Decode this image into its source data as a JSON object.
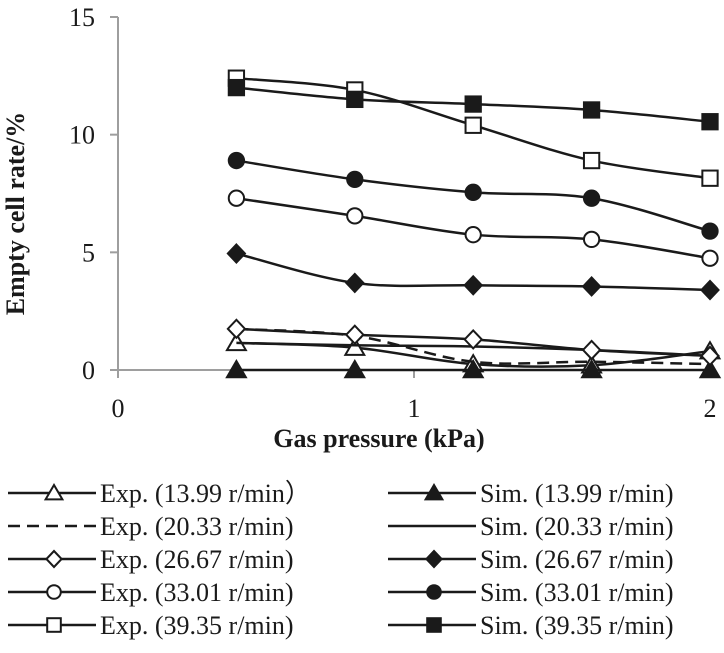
{
  "chart_data": {
    "type": "line",
    "title": "",
    "xlabel": "Gas pressure (kPa)",
    "ylabel": "Empty cell rate/%",
    "xlim": [
      0,
      2
    ],
    "ylim": [
      0,
      15
    ],
    "xticks": [
      0,
      1,
      2
    ],
    "yticks": [
      0,
      5,
      10,
      15
    ],
    "grid": false,
    "legend_position": "bottom",
    "series": [
      {
        "name": "Exp. (13.99 r/min）",
        "line": "solid",
        "marker": "open-triangle",
        "x": [
          0.4,
          0.8,
          1.2,
          1.6,
          2.0
        ],
        "y": [
          1.15,
          0.95,
          0.25,
          0.2,
          0.8
        ]
      },
      {
        "name": "Sim. (13.99 r/min)",
        "line": "solid",
        "marker": "filled-triangle",
        "x": [
          0.4,
          0.8,
          1.2,
          1.6,
          2.0
        ],
        "y": [
          0.0,
          0.0,
          0.0,
          0.0,
          0.0
        ]
      },
      {
        "name": "Exp. (20.33 r/min)",
        "line": "dashed",
        "marker": "none",
        "x": [
          0.4,
          0.8,
          1.2,
          1.6,
          2.0
        ],
        "y": [
          1.75,
          1.45,
          0.35,
          0.35,
          0.25
        ]
      },
      {
        "name": "Sim. (20.33 r/min)",
        "line": "solid",
        "marker": "none",
        "x": [
          0.4,
          0.8,
          1.2,
          1.6,
          2.0
        ],
        "y": [
          1.15,
          1.05,
          1.0,
          0.85,
          0.6
        ]
      },
      {
        "name": "Exp. (26.67 r/min)",
        "line": "solid",
        "marker": "open-diamond",
        "x": [
          0.4,
          0.8,
          1.2,
          1.6,
          2.0
        ],
        "y": [
          1.75,
          1.5,
          1.3,
          0.85,
          0.6
        ]
      },
      {
        "name": "Sim. (26.67 r/min)",
        "line": "solid",
        "marker": "filled-diamond",
        "x": [
          0.4,
          0.8,
          1.2,
          1.6,
          2.0
        ],
        "y": [
          4.95,
          3.7,
          3.6,
          3.55,
          3.4
        ]
      },
      {
        "name": "Exp. (33.01 r/min)",
        "line": "solid",
        "marker": "open-circle",
        "x": [
          0.4,
          0.8,
          1.2,
          1.6,
          2.0
        ],
        "y": [
          7.3,
          6.55,
          5.75,
          5.55,
          4.75
        ]
      },
      {
        "name": "Sim. (33.01 r/min)",
        "line": "solid",
        "marker": "filled-circle",
        "x": [
          0.4,
          0.8,
          1.2,
          1.6,
          2.0
        ],
        "y": [
          8.9,
          8.1,
          7.55,
          7.3,
          5.9
        ]
      },
      {
        "name": "Exp. (39.35 r/min)",
        "line": "solid",
        "marker": "open-square",
        "x": [
          0.4,
          0.8,
          1.2,
          1.6,
          2.0
        ],
        "y": [
          12.4,
          11.9,
          10.4,
          8.9,
          8.15
        ]
      },
      {
        "name": "Sim. (39.35 r/min)",
        "line": "solid",
        "marker": "filled-square",
        "x": [
          0.4,
          0.8,
          1.2,
          1.6,
          2.0
        ],
        "y": [
          12.0,
          11.5,
          11.3,
          11.05,
          10.55
        ]
      }
    ]
  },
  "colors": {
    "axis": "#9e9e9e",
    "ink": "#1a1a1a",
    "background": "#ffffff"
  }
}
